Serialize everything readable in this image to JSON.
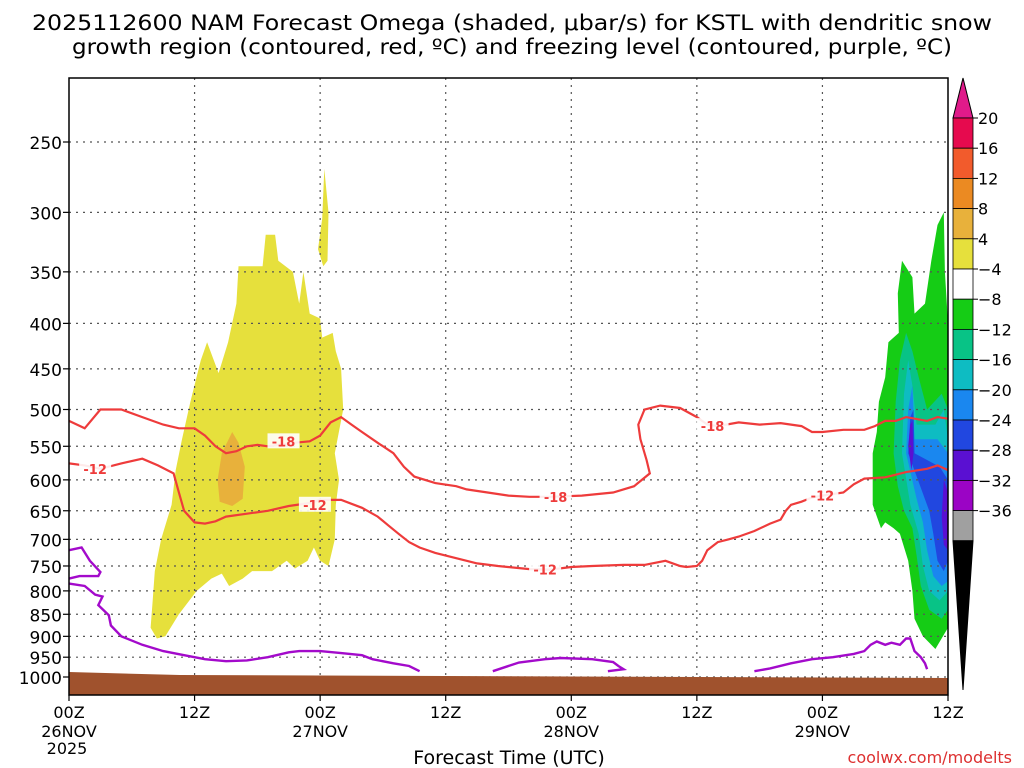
{
  "chart_data": {
    "type": "heatmap",
    "title_line1": "2025112600 NAM Forecast Omega (shaded, μbar/s) for KSTL with dendritic snow",
    "title_line2": "growth region (contoured, red, ºC) and freezing level (contoured, purple, ºC)",
    "xlabel": "Forecast Time (UTC)",
    "x_ticks": [
      {
        "h": 0,
        "label": "00Z",
        "date": "26NOV",
        "year": "2025"
      },
      {
        "h": 12,
        "label": "12Z",
        "date": "",
        "year": ""
      },
      {
        "h": 24,
        "label": "00Z",
        "date": "27NOV",
        "year": ""
      },
      {
        "h": 36,
        "label": "12Z",
        "date": "",
        "year": ""
      },
      {
        "h": 48,
        "label": "00Z",
        "date": "28NOV",
        "year": ""
      },
      {
        "h": 60,
        "label": "12Z",
        "date": "",
        "year": ""
      },
      {
        "h": 72,
        "label": "00Z",
        "date": "29NOV",
        "year": ""
      },
      {
        "h": 84,
        "label": "12Z",
        "date": "",
        "year": ""
      }
    ],
    "xlim": [
      0,
      84
    ],
    "y_ticks": [
      250,
      300,
      350,
      400,
      450,
      500,
      550,
      600,
      650,
      700,
      750,
      800,
      850,
      900,
      950,
      1000
    ],
    "ylim": [
      200,
      1020
    ],
    "colorbar": {
      "labels": [
        "20",
        "16",
        "12",
        "8",
        "4",
        "−4",
        "−8",
        "−12",
        "−16",
        "−20",
        "−24",
        "−28",
        "−32",
        "−36"
      ],
      "colors": [
        "#e60a4e",
        "#f25b2c",
        "#eb8a22",
        "#e8b13b",
        "#e6e03c",
        "#ffffff",
        "#15cc15",
        "#08c386",
        "#0ebcc2",
        "#1a87ef",
        "#2147e0",
        "#5a10d2",
        "#9b04c5",
        "#a0a0a0"
      ],
      "top_color": "#e01a8a",
      "bottom_color": "#000000"
    },
    "contour_labels": {
      "dgz": [
        {
          "h": 2.5,
          "p": 583,
          "text": "-12"
        },
        {
          "h": 20.5,
          "p": 543,
          "text": "-18"
        },
        {
          "h": 23.5,
          "p": 640,
          "text": "-12"
        },
        {
          "h": 46.5,
          "p": 627,
          "text": "-18"
        },
        {
          "h": 45.5,
          "p": 757,
          "text": "-12"
        },
        {
          "h": 61.5,
          "p": 522,
          "text": "-18"
        },
        {
          "h": 72.0,
          "p": 625,
          "text": "-12"
        }
      ]
    },
    "credit": "coolwx.com/modelts"
  }
}
